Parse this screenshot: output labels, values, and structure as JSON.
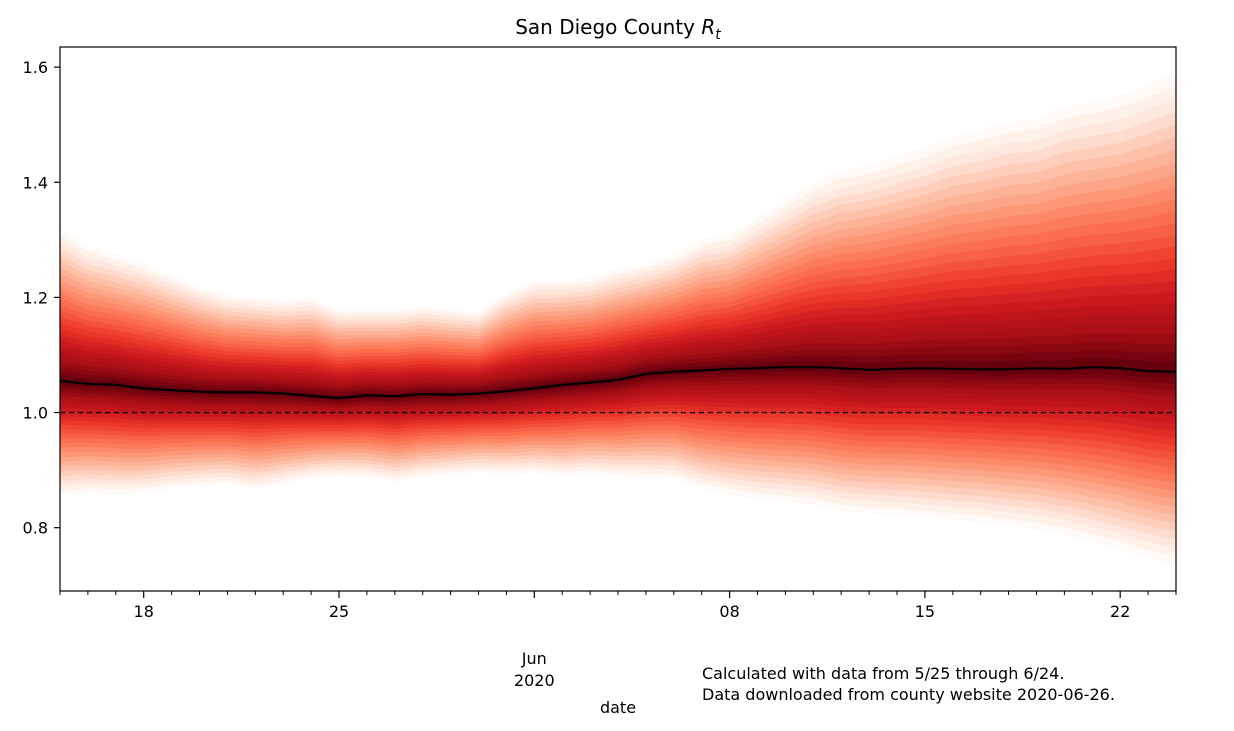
{
  "chart_data": {
    "type": "area",
    "title": "San Diego County",
    "title_symbol": "R",
    "title_subscript": "t",
    "xlabel": "date",
    "ylabel": "",
    "x_start": "2020-05-15",
    "x_end": "2020-06-24",
    "ylim": [
      0.69,
      1.635
    ],
    "y_ticks": [
      0.8,
      1.0,
      1.2,
      1.4,
      1.6
    ],
    "y_tick_labels": [
      "0.8",
      "1.0",
      "1.2",
      "1.4",
      "1.6"
    ],
    "x_major_ticks": [
      {
        "date": "2020-05-18",
        "label": "18"
      },
      {
        "date": "2020-05-25",
        "label": "25"
      },
      {
        "date": "2020-06-01",
        "label": ""
      },
      {
        "date": "2020-06-08",
        "label": "08"
      },
      {
        "date": "2020-06-15",
        "label": "15"
      },
      {
        "date": "2020-06-22",
        "label": "22"
      }
    ],
    "x_month_label": {
      "date": "2020-06-01",
      "month": "Jun",
      "year": "2020"
    },
    "reference_line": {
      "y": 1.0,
      "style": "dashed"
    },
    "median_color": "#000000",
    "band_color_outer": "#fff5f0",
    "band_color_inner": "#67000d",
    "grid": false,
    "legend": "none",
    "dates": [
      "2020-05-15",
      "2020-05-16",
      "2020-05-17",
      "2020-05-18",
      "2020-05-19",
      "2020-05-20",
      "2020-05-21",
      "2020-05-22",
      "2020-05-23",
      "2020-05-24",
      "2020-05-25",
      "2020-05-26",
      "2020-05-27",
      "2020-05-28",
      "2020-05-29",
      "2020-05-30",
      "2020-05-31",
      "2020-06-01",
      "2020-06-02",
      "2020-06-03",
      "2020-06-04",
      "2020-06-05",
      "2020-06-06",
      "2020-06-07",
      "2020-06-08",
      "2020-06-09",
      "2020-06-10",
      "2020-06-11",
      "2020-06-12",
      "2020-06-13",
      "2020-06-14",
      "2020-06-15",
      "2020-06-16",
      "2020-06-17",
      "2020-06-18",
      "2020-06-19",
      "2020-06-20",
      "2020-06-21",
      "2020-06-22",
      "2020-06-23",
      "2020-06-24"
    ],
    "median": [
      1.055,
      1.05,
      1.048,
      1.042,
      1.039,
      1.036,
      1.035,
      1.035,
      1.033,
      1.029,
      1.025,
      1.03,
      1.028,
      1.032,
      1.031,
      1.033,
      1.037,
      1.042,
      1.048,
      1.052,
      1.057,
      1.067,
      1.071,
      1.073,
      1.076,
      1.077,
      1.079,
      1.079,
      1.077,
      1.074,
      1.076,
      1.077,
      1.076,
      1.075,
      1.075,
      1.077,
      1.076,
      1.079,
      1.077,
      1.072,
      1.071
    ],
    "upper_bound": [
      1.32,
      1.29,
      1.275,
      1.26,
      1.24,
      1.22,
      1.205,
      1.2,
      1.195,
      1.2,
      1.18,
      1.18,
      1.18,
      1.185,
      1.18,
      1.175,
      1.21,
      1.23,
      1.23,
      1.235,
      1.25,
      1.26,
      1.275,
      1.3,
      1.31,
      1.34,
      1.37,
      1.4,
      1.42,
      1.43,
      1.445,
      1.46,
      1.48,
      1.49,
      1.505,
      1.51,
      1.53,
      1.54,
      1.55,
      1.57,
      1.59
    ],
    "lower_bound": [
      0.855,
      0.86,
      0.858,
      0.86,
      0.868,
      0.872,
      0.875,
      0.866,
      0.876,
      0.885,
      0.889,
      0.887,
      0.879,
      0.887,
      0.891,
      0.895,
      0.892,
      0.895,
      0.889,
      0.893,
      0.888,
      0.887,
      0.884,
      0.868,
      0.857,
      0.85,
      0.845,
      0.84,
      0.829,
      0.825,
      0.822,
      0.818,
      0.813,
      0.81,
      0.803,
      0.797,
      0.788,
      0.775,
      0.762,
      0.748,
      0.735
    ]
  },
  "notes": {
    "line1": "Calculated with data from 5/25 through 6/24.",
    "line2": "Data downloaded from county website 2020-06-26."
  }
}
